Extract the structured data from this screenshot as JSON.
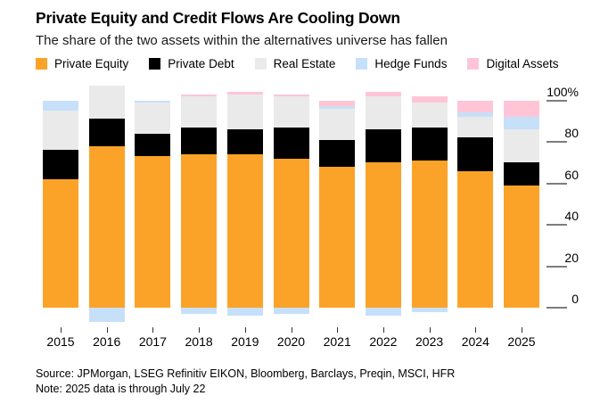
{
  "header": {
    "title": "Private Equity and Credit Flows Are Cooling Down",
    "subtitle": "The share of the two assets within the alternatives universe has fallen"
  },
  "chart_data": {
    "type": "bar",
    "stacked": true,
    "title": "Private Equity and Credit Flows Are Cooling Down",
    "subtitle": "The share of the two assets within the alternatives universe has fallen",
    "categories": [
      "2015",
      "2016",
      "2017",
      "2018",
      "2019",
      "2020",
      "2021",
      "2022",
      "2023",
      "2024",
      "2025"
    ],
    "series": [
      {
        "name": "Private Equity",
        "color": "#FBA328",
        "values": [
          62,
          78,
          73,
          74,
          74,
          72,
          68,
          70,
          71,
          66,
          59
        ]
      },
      {
        "name": "Private Debt",
        "color": "#000000",
        "values": [
          14,
          13,
          11,
          13,
          12,
          15,
          13,
          16,
          16,
          16,
          11
        ]
      },
      {
        "name": "Real Estate",
        "color": "#EAEAEA",
        "values": [
          19,
          16,
          15,
          15,
          17,
          15,
          15,
          16,
          12,
          10,
          16
        ]
      },
      {
        "name": "Hedge Funds",
        "color": "#C7E0F9",
        "values": [
          5,
          -7,
          1,
          -3,
          -4,
          -3,
          1,
          -4,
          -2,
          2,
          6
        ]
      },
      {
        "name": "Digital Assets",
        "color": "#FFC5D7",
        "values": [
          0,
          0,
          0,
          1,
          1,
          1,
          3,
          2,
          3,
          6,
          8
        ]
      }
    ],
    "units": "%",
    "y_ticks": [
      0,
      20,
      40,
      60,
      80,
      100
    ],
    "y_top_tick_label": "100%",
    "ylim": [
      -8,
      100
    ],
    "grid": false,
    "legend_position": "top",
    "axis_side": "right"
  },
  "footer": {
    "source": "Source: JPMorgan, LSEG Refinitiv EIKON, Bloomberg, Barclays, Preqin, MSCI, HFR",
    "note": "Note: 2025 data is through July 22"
  }
}
